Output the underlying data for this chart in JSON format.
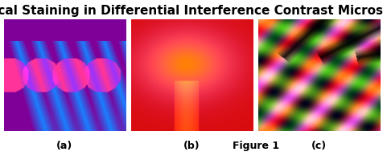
{
  "title": "Optical Staining in Differential Interference Contrast Microscopy",
  "title_fontsize": 11,
  "title_fontweight": "bold",
  "label_a": "(a)",
  "label_b": "(b)",
  "label_c": "(c)",
  "label_fig": "Figure 1",
  "label_fontsize": 9,
  "label_fontweight": "bold",
  "bg_color": "#ffffff",
  "fig_width": 4.77,
  "fig_height": 1.99,
  "dpi": 100
}
